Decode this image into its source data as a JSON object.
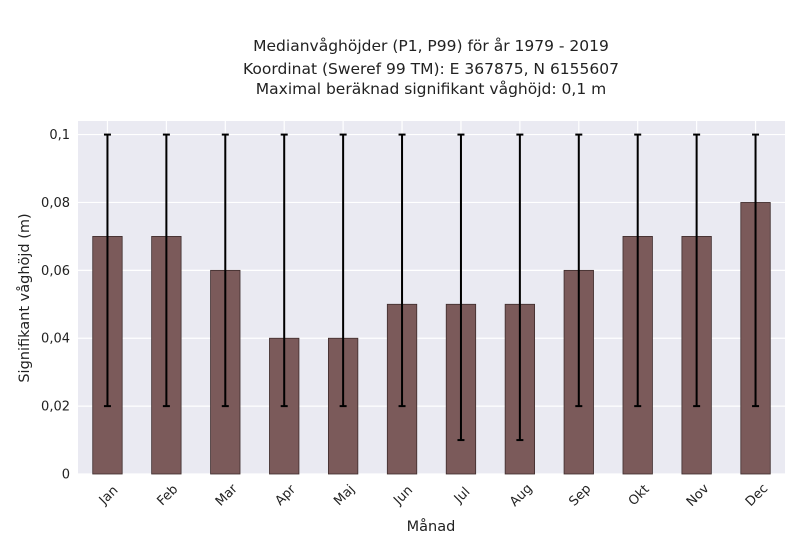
{
  "chart_data": {
    "type": "bar",
    "title_lines": [
      "Medianvåghöjder (P1, P99) för år 1979 - 2019",
      "Koordinat (Sweref 99 TM): E 367875, N 6155607",
      "Maximal beräknad signifikant våghöjd: 0,1 m"
    ],
    "xlabel": "Månad",
    "ylabel": "Signifikant våghöjd (m)",
    "categories": [
      "Jan",
      "Feb",
      "Mar",
      "Apr",
      "Maj",
      "Jun",
      "Jul",
      "Aug",
      "Sep",
      "Okt",
      "Nov",
      "Dec"
    ],
    "values": [
      0.07,
      0.07,
      0.06,
      0.04,
      0.04,
      0.05,
      0.05,
      0.05,
      0.06,
      0.07,
      0.07,
      0.08
    ],
    "error_low": [
      0.02,
      0.02,
      0.02,
      0.02,
      0.02,
      0.02,
      0.01,
      0.01,
      0.02,
      0.02,
      0.02,
      0.02
    ],
    "error_high": [
      0.1,
      0.1,
      0.1,
      0.1,
      0.1,
      0.1,
      0.1,
      0.1,
      0.1,
      0.1,
      0.1,
      0.1
    ],
    "ylim": [
      0,
      0.104
    ],
    "yticks": [
      0,
      0.02,
      0.04,
      0.06,
      0.08,
      0.1
    ],
    "ytick_labels": [
      "0",
      "0,02",
      "0,04",
      "0,06",
      "0,08",
      "0,1"
    ],
    "grid": true,
    "legend": "none",
    "colors": {
      "plot_background": "#eaeaf2",
      "grid": "#ffffff",
      "bar_fill": "#7b5a5a",
      "bar_edge": "#3d2b2b",
      "error_bar": "#000000"
    }
  }
}
